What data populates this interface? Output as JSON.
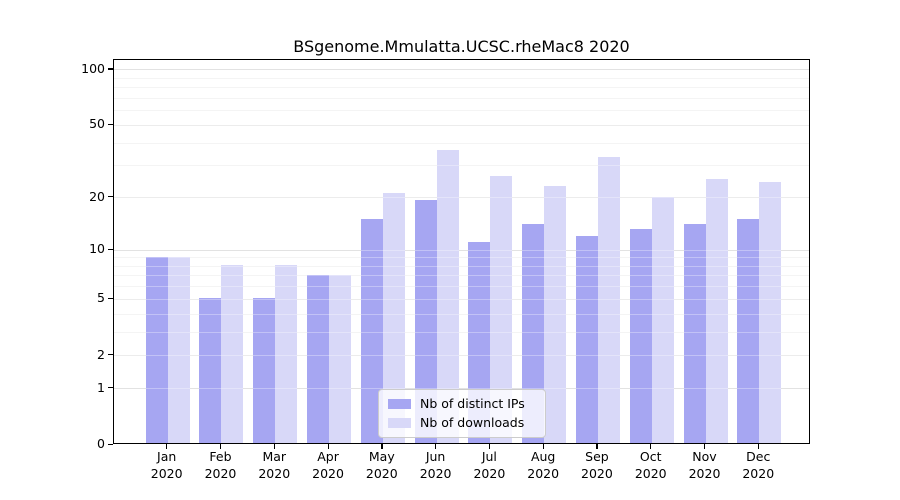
{
  "chart_data": {
    "type": "bar",
    "title": "BSgenome.Mmulatta.UCSC.rheMac8 2020",
    "months": [
      "Jan",
      "Feb",
      "Mar",
      "Apr",
      "May",
      "Jun",
      "Jul",
      "Aug",
      "Sep",
      "Oct",
      "Nov",
      "Dec"
    ],
    "year": "2020",
    "series": [
      {
        "name": "Nb of distinct IPs",
        "color": "#a6a6f2",
        "values": [
          9,
          5,
          5,
          7,
          15,
          19,
          11,
          14,
          12,
          13,
          14,
          15
        ]
      },
      {
        "name": "Nb of downloads",
        "color": "#d8d8f8",
        "values": [
          9,
          8,
          8,
          7,
          21,
          36,
          26,
          23,
          33,
          20,
          25,
          24
        ]
      }
    ],
    "yscale": "log1p",
    "yticks": [
      0,
      1,
      2,
      5,
      10,
      20,
      50,
      100
    ],
    "minor_yticks": [
      3,
      4,
      6,
      7,
      8,
      9,
      30,
      40,
      60,
      70,
      80,
      90
    ],
    "ylim": [
      0,
      113
    ],
    "grid": true,
    "legend_position": "lower center",
    "colors": {
      "major_grid": "#d4d4d4",
      "mid_grid": "#e3e3e3",
      "minor_grid": "#efefef",
      "axis": "#000000"
    }
  }
}
